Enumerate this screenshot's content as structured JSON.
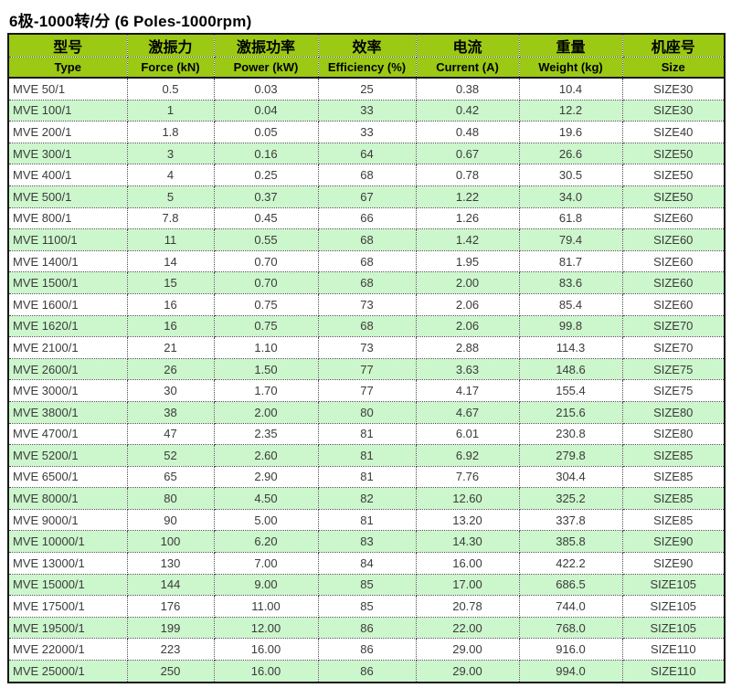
{
  "page": {
    "title": "6极-1000转/分 (6 Poles-1000rpm)"
  },
  "colors": {
    "header_bg": "#9bc914",
    "row_bg": "#ffffff",
    "row_alt_bg": "#ccf6cc",
    "outer_border": "#161616",
    "inner_border": "#4d4d4d",
    "data_text": "#3b3b3b"
  },
  "chart_data": {
    "type": "table",
    "title": "6极-1000转/分 (6 Poles-1000rpm)",
    "legend_position": "none",
    "grid": "dotted cell borders, solid outer border",
    "column_keys": [
      "type",
      "force_kn",
      "power_kw",
      "efficiency_pct",
      "current_a",
      "weight_kg",
      "size"
    ],
    "columns": [
      {
        "zh": "型号",
        "en": "Type"
      },
      {
        "zh": "激振力",
        "en": "Force (kN)"
      },
      {
        "zh": "激振功率",
        "en": "Power (kW)"
      },
      {
        "zh": "效率",
        "en": "Efficiency (%)"
      },
      {
        "zh": "电流",
        "en": "Current (A)"
      },
      {
        "zh": "重量",
        "en": "Weight (kg)"
      },
      {
        "zh": "机座号",
        "en": "Size"
      }
    ],
    "rows": [
      [
        "MVE 50/1",
        "0.5",
        "0.03",
        "25",
        "0.38",
        "10.4",
        "SIZE30"
      ],
      [
        "MVE 100/1",
        "1",
        "0.04",
        "33",
        "0.42",
        "12.2",
        "SIZE30"
      ],
      [
        "MVE 200/1",
        "1.8",
        "0.05",
        "33",
        "0.48",
        "19.6",
        "SIZE40"
      ],
      [
        "MVE 300/1",
        "3",
        "0.16",
        "64",
        "0.67",
        "26.6",
        "SIZE50"
      ],
      [
        "MVE 400/1",
        "4",
        "0.25",
        "68",
        "0.78",
        "30.5",
        "SIZE50"
      ],
      [
        "MVE 500/1",
        "5",
        "0.37",
        "67",
        "1.22",
        "34.0",
        "SIZE50"
      ],
      [
        "MVE 800/1",
        "7.8",
        "0.45",
        "66",
        "1.26",
        "61.8",
        "SIZE60"
      ],
      [
        "MVE 1100/1",
        "11",
        "0.55",
        "68",
        "1.42",
        "79.4",
        "SIZE60"
      ],
      [
        "MVE 1400/1",
        "14",
        "0.70",
        "68",
        "1.95",
        "81.7",
        "SIZE60"
      ],
      [
        "MVE 1500/1",
        "15",
        "0.70",
        "68",
        "2.00",
        "83.6",
        "SIZE60"
      ],
      [
        "MVE 1600/1",
        "16",
        "0.75",
        "73",
        "2.06",
        "85.4",
        "SIZE60"
      ],
      [
        "MVE 1620/1",
        "16",
        "0.75",
        "68",
        "2.06",
        "99.8",
        "SIZE70"
      ],
      [
        "MVE 2100/1",
        "21",
        "1.10",
        "73",
        "2.88",
        "114.3",
        "SIZE70"
      ],
      [
        "MVE 2600/1",
        "26",
        "1.50",
        "77",
        "3.63",
        "148.6",
        "SIZE75"
      ],
      [
        "MVE 3000/1",
        "30",
        "1.70",
        "77",
        "4.17",
        "155.4",
        "SIZE75"
      ],
      [
        "MVE 3800/1",
        "38",
        "2.00",
        "80",
        "4.67",
        "215.6",
        "SIZE80"
      ],
      [
        "MVE 4700/1",
        "47",
        "2.35",
        "81",
        "6.01",
        "230.8",
        "SIZE80"
      ],
      [
        "MVE 5200/1",
        "52",
        "2.60",
        "81",
        "6.92",
        "279.8",
        "SIZE85"
      ],
      [
        "MVE 6500/1",
        "65",
        "2.90",
        "81",
        "7.76",
        "304.4",
        "SIZE85"
      ],
      [
        "MVE 8000/1",
        "80",
        "4.50",
        "82",
        "12.60",
        "325.2",
        "SIZE85"
      ],
      [
        "MVE 9000/1",
        "90",
        "5.00",
        "81",
        "13.20",
        "337.8",
        "SIZE85"
      ],
      [
        "MVE 10000/1",
        "100",
        "6.20",
        "83",
        "14.30",
        "385.8",
        "SIZE90"
      ],
      [
        "MVE 13000/1",
        "130",
        "7.00",
        "84",
        "16.00",
        "422.2",
        "SIZE90"
      ],
      [
        "MVE 15000/1",
        "144",
        "9.00",
        "85",
        "17.00",
        "686.5",
        "SIZE105"
      ],
      [
        "MVE 17500/1",
        "176",
        "11.00",
        "85",
        "20.78",
        "744.0",
        "SIZE105"
      ],
      [
        "MVE 19500/1",
        "199",
        "12.00",
        "86",
        "22.00",
        "768.0",
        "SIZE105"
      ],
      [
        "MVE 22000/1",
        "223",
        "16.00",
        "86",
        "29.00",
        "916.0",
        "SIZE110"
      ],
      [
        "MVE 25000/1",
        "250",
        "16.00",
        "86",
        "29.00",
        "994.0",
        "SIZE110"
      ]
    ]
  }
}
